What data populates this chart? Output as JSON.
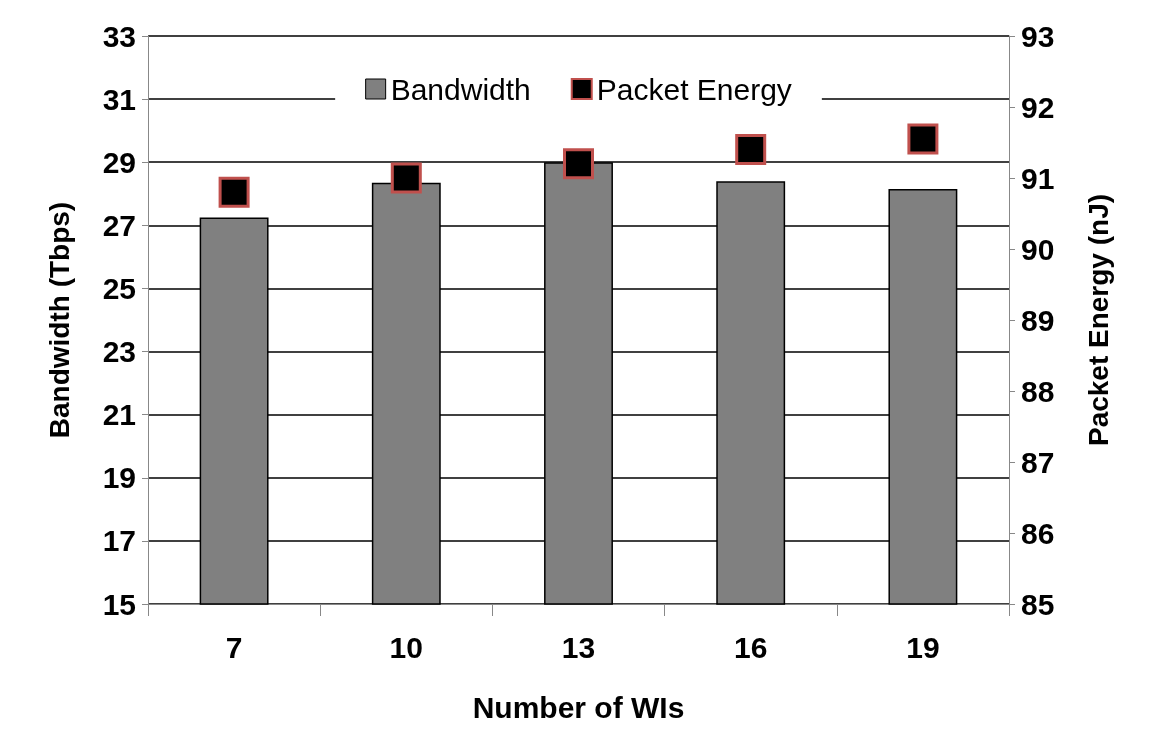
{
  "chart_data": {
    "type": "bar",
    "xlabel": "Number of WIs",
    "ylabel": "Bandwidth (Tbps)",
    "y2label": "Packet Energy (nJ)",
    "categories": [
      "7",
      "10",
      "13",
      "16",
      "19"
    ],
    "series": [
      {
        "name": "Bandwidth",
        "color": "#808080",
        "values": [
          27.25,
          28.35,
          29.0,
          28.4,
          28.15
        ]
      },
      {
        "name": "Packet Energy",
        "type": "scatter",
        "axis": "y2",
        "color": "#000000",
        "values": [
          90.8,
          91.0,
          91.2,
          91.4,
          91.55
        ]
      }
    ],
    "ylim": [
      15,
      33
    ],
    "yticks": [
      15,
      17,
      19,
      21,
      23,
      25,
      27,
      29,
      31,
      33
    ],
    "y2lim": [
      85,
      93
    ],
    "y2ticks": [
      85,
      86,
      87,
      88,
      89,
      90,
      91,
      92,
      93
    ],
    "grid": "y",
    "legend": "top",
    "marker": "square"
  }
}
